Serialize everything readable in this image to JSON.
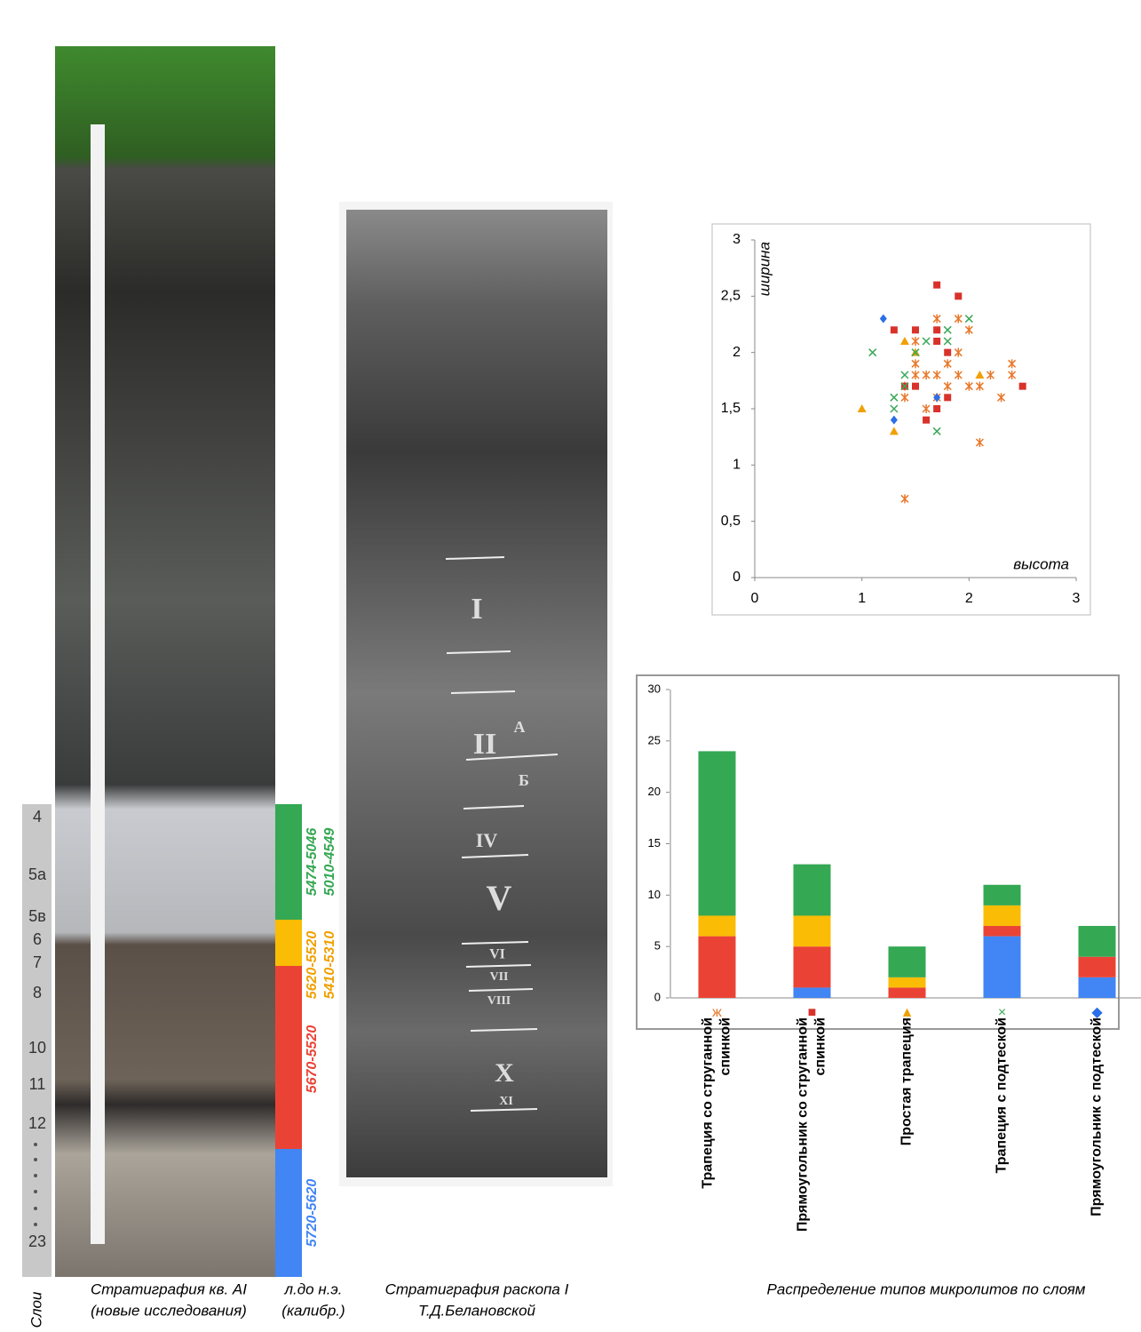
{
  "strata": {
    "layers": [
      "4",
      "5а",
      "5в",
      "6",
      "7",
      "8",
      "10",
      "11",
      "12",
      "23"
    ],
    "dates": [
      "5474-5046",
      "5010-4549",
      "5620-5520",
      "5410-5310",
      "5670-5520",
      "5720-5620"
    ],
    "numerals": [
      "I",
      "II",
      "А",
      "Б",
      "IV",
      "V",
      "VI",
      "VII",
      "VIII",
      "X",
      "XI"
    ]
  },
  "captions": {
    "layers": "Слои",
    "section": [
      "Стратиграфия кв. AI",
      "(новые исследования)"
    ],
    "dates": [
      "л.до н.э.",
      "(калибр.)"
    ],
    "old_section": [
      "Стратиграфия раскопа I",
      "Т.Д.Белановской"
    ],
    "distribution": "Распределение типов микролитов по слоям"
  },
  "chart_data": [
    {
      "type": "scatter",
      "x_label": "высота",
      "y_label": "ширина",
      "xlim": [
        0,
        3
      ],
      "ylim": [
        0,
        3
      ],
      "xticks": [
        0,
        1,
        2,
        3
      ],
      "yticks": [
        0,
        {
          "value": 0.5,
          "label": "0,5"
        },
        1,
        {
          "value": 1.5,
          "label": "1,5"
        },
        2,
        {
          "value": 2.5,
          "label": "2,5"
        },
        3
      ],
      "series": [
        {
          "marker": "asterisk",
          "color": "#e8782a",
          "x": [
            1.7,
            1.9,
            2.0,
            1.5,
            1.5,
            1.5,
            1.4,
            1.4,
            1.6,
            1.8,
            1.9,
            1.9,
            1.8,
            2.0,
            2.1,
            2.2,
            2.4,
            2.4,
            2.3,
            1.6,
            1.7,
            2.1,
            1.4,
            1.7
          ],
          "values": [
            2.3,
            2.3,
            2.2,
            2.1,
            1.9,
            1.8,
            1.7,
            1.6,
            1.8,
            1.9,
            2.0,
            1.8,
            1.7,
            1.7,
            1.7,
            1.8,
            1.9,
            1.8,
            1.6,
            1.5,
            1.6,
            1.2,
            0.7,
            1.8
          ]
        },
        {
          "marker": "square",
          "color": "#d8322a",
          "x": [
            1.7,
            1.9,
            1.3,
            1.7,
            1.7,
            1.8,
            1.5,
            1.4,
            1.8,
            1.6,
            2.5,
            1.5,
            1.7
          ],
          "values": [
            2.6,
            2.5,
            2.2,
            2.2,
            2.1,
            2.0,
            1.7,
            1.7,
            1.6,
            1.4,
            1.7,
            2.2,
            1.5
          ]
        },
        {
          "marker": "triangle",
          "color": "#f0a000",
          "x": [
            1.0,
            1.4,
            1.5,
            1.3,
            2.1
          ],
          "values": [
            1.5,
            2.1,
            2.0,
            1.3,
            1.8
          ]
        },
        {
          "marker": "cross",
          "color": "#3aa85a",
          "x": [
            1.1,
            1.6,
            1.8,
            2.0,
            1.8,
            1.4,
            1.3,
            1.3,
            1.7,
            1.5,
            1.4
          ],
          "values": [
            2.0,
            2.1,
            2.2,
            2.3,
            2.1,
            1.8,
            1.6,
            1.5,
            1.3,
            2.0,
            1.7
          ]
        },
        {
          "marker": "diamond",
          "color": "#2a6ee8",
          "x": [
            1.2,
            1.7,
            1.3
          ],
          "values": [
            2.3,
            1.6,
            1.4
          ]
        }
      ]
    },
    {
      "type": "stacked_bar",
      "ylim": [
        0,
        30
      ],
      "yticks": [
        0,
        5,
        10,
        15,
        20,
        25,
        30
      ],
      "categories": [
        "Трапеция со струганной спинкой",
        "Прямоугольник со струганной спинкой",
        "Простая трапеция",
        "Трапеция с подтеской",
        "Прямоугольник с подтеской"
      ],
      "category_markers": [
        "ж",
        "■",
        "▲",
        "×",
        "◆"
      ],
      "series": [
        {
          "color": "#4285f4",
          "values": [
            0,
            1,
            0,
            6,
            2
          ]
        },
        {
          "color": "#ea4335",
          "values": [
            6,
            4,
            1,
            1,
            2
          ]
        },
        {
          "color": "#fbbc05",
          "values": [
            2,
            3,
            1,
            2,
            0
          ]
        },
        {
          "color": "#34a853",
          "values": [
            16,
            5,
            3,
            2,
            3
          ]
        }
      ]
    }
  ]
}
